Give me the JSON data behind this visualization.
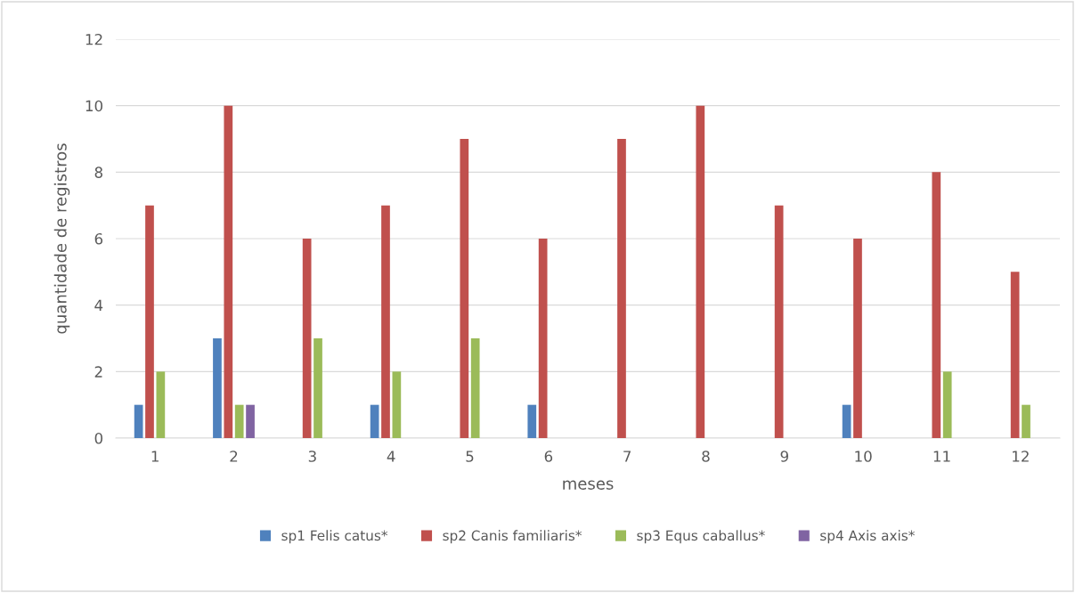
{
  "chart_data": {
    "type": "bar",
    "xlabel": "meses",
    "ylabel": "quantidade de registros",
    "categories": [
      "1",
      "2",
      "3",
      "4",
      "5",
      "6",
      "7",
      "8",
      "9",
      "10",
      "11",
      "12"
    ],
    "series": [
      {
        "name": "sp1 Felis catus*",
        "color": "#4f81bd",
        "values": [
          1,
          3,
          0,
          1,
          0,
          1,
          0,
          0,
          0,
          1,
          0,
          0
        ]
      },
      {
        "name": "sp2 Canis familiaris*",
        "color": "#c0504d",
        "values": [
          7,
          10,
          6,
          7,
          9,
          6,
          9,
          10,
          7,
          6,
          8,
          5
        ]
      },
      {
        "name": "sp3 Equs caballus*",
        "color": "#9bbb59",
        "values": [
          2,
          1,
          3,
          2,
          3,
          0,
          0,
          0,
          0,
          0,
          2,
          1
        ]
      },
      {
        "name": "sp4 Axis axis*",
        "color": "#8064a2",
        "values": [
          0,
          1,
          0,
          0,
          0,
          0,
          0,
          0,
          0,
          0,
          0,
          0
        ]
      }
    ],
    "ylim": [
      0,
      12
    ],
    "yticks": [
      0,
      2,
      4,
      6,
      8,
      10,
      12
    ],
    "grid": "y",
    "legend": "bottom"
  }
}
